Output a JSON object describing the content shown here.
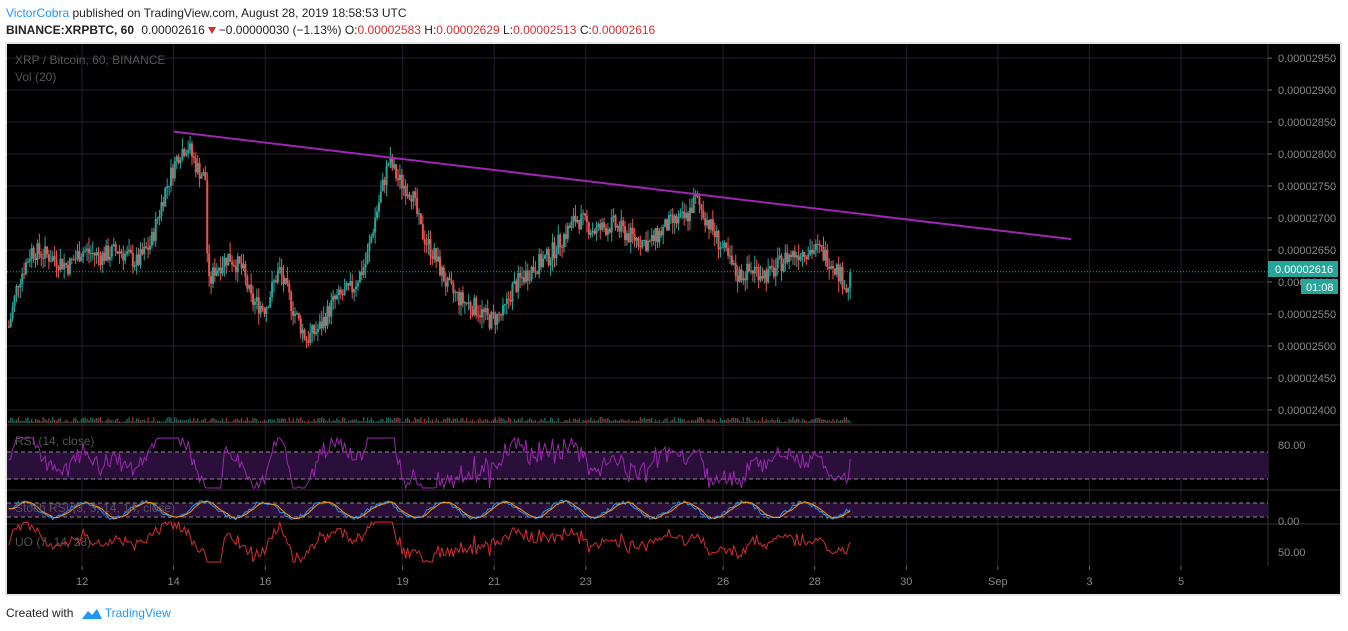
{
  "header": {
    "author": "VictorCobra",
    "published_text": "published on TradingView.com, August 28, 2019 18:58:53 UTC",
    "symbol": "BINANCE:XRPBTC, 60",
    "last": "0.00002616",
    "change": "−0.00000030 (−1.13%)",
    "o_label": "O:",
    "o_value": "0.00002583",
    "h_label": "H:",
    "h_value": "0.00002629",
    "l_label": "L:",
    "l_value": "0.00002513",
    "c_label": "C:",
    "c_value": "0.00002616"
  },
  "chart_data": {
    "type": "candlestick",
    "title": "XRP / Bitcoin, 60, BINANCE",
    "volume_label": "Vol (20)",
    "y_axis_ticks": [
      "0.00002950",
      "0.00002900",
      "0.00002850",
      "0.00002800",
      "0.00002750",
      "0.00002700",
      "0.00002650",
      "0.00002600",
      "0.00002550",
      "0.00002500",
      "0.00002450",
      "0.00002400"
    ],
    "ylim": [
      2.378e-05,
      2.972e-05
    ],
    "x_axis_ticks": [
      "12",
      "14",
      "16",
      "19",
      "21",
      "23",
      "26",
      "28",
      "30",
      "Sep",
      "3",
      "5"
    ],
    "x_tick_days": [
      12,
      14,
      16,
      19,
      21,
      23,
      26,
      28,
      30,
      32,
      34,
      36
    ],
    "xlim_days": [
      10.36,
      37.9
    ],
    "data_end_day": 28.8,
    "current_price": "0.00002616",
    "current_price_value": 2.616e-05,
    "countdown": "01:08",
    "price_path": [
      {
        "day": 10.4,
        "price": 2.53e-05
      },
      {
        "day": 10.6,
        "price": 2.6e-05
      },
      {
        "day": 10.9,
        "price": 2.65e-05
      },
      {
        "day": 11.3,
        "price": 2.64e-05
      },
      {
        "day": 11.7,
        "price": 2.625e-05
      },
      {
        "day": 12.0,
        "price": 2.65e-05
      },
      {
        "day": 12.4,
        "price": 2.64e-05
      },
      {
        "day": 12.8,
        "price": 2.65e-05
      },
      {
        "day": 13.2,
        "price": 2.63e-05
      },
      {
        "day": 13.5,
        "price": 2.66e-05
      },
      {
        "day": 13.8,
        "price": 2.74e-05
      },
      {
        "day": 14.1,
        "price": 2.8e-05
      },
      {
        "day": 14.3,
        "price": 2.815e-05
      },
      {
        "day": 14.5,
        "price": 2.78e-05
      },
      {
        "day": 14.7,
        "price": 2.76e-05
      },
      {
        "day": 14.75,
        "price": 2.59e-05
      },
      {
        "day": 14.9,
        "price": 2.62e-05
      },
      {
        "day": 15.2,
        "price": 2.64e-05
      },
      {
        "day": 15.5,
        "price": 2.62e-05
      },
      {
        "day": 15.7,
        "price": 2.57e-05
      },
      {
        "day": 16.0,
        "price": 2.56e-05
      },
      {
        "day": 16.3,
        "price": 2.62e-05
      },
      {
        "day": 16.6,
        "price": 2.56e-05
      },
      {
        "day": 16.9,
        "price": 2.51e-05
      },
      {
        "day": 17.2,
        "price": 2.53e-05
      },
      {
        "day": 17.5,
        "price": 2.57e-05
      },
      {
        "day": 17.9,
        "price": 2.59e-05
      },
      {
        "day": 18.2,
        "price": 2.63e-05
      },
      {
        "day": 18.4,
        "price": 2.7e-05
      },
      {
        "day": 18.7,
        "price": 2.79e-05
      },
      {
        "day": 18.9,
        "price": 2.76e-05
      },
      {
        "day": 19.2,
        "price": 2.74e-05
      },
      {
        "day": 19.4,
        "price": 2.68e-05
      },
      {
        "day": 19.7,
        "price": 2.64e-05
      },
      {
        "day": 20.0,
        "price": 2.59e-05
      },
      {
        "day": 20.3,
        "price": 2.57e-05
      },
      {
        "day": 20.6,
        "price": 2.56e-05
      },
      {
        "day": 20.9,
        "price": 2.54e-05
      },
      {
        "day": 21.2,
        "price": 2.55e-05
      },
      {
        "day": 21.4,
        "price": 2.59e-05
      },
      {
        "day": 21.8,
        "price": 2.62e-05
      },
      {
        "day": 22.2,
        "price": 2.64e-05
      },
      {
        "day": 22.5,
        "price": 2.67e-05
      },
      {
        "day": 22.8,
        "price": 2.7e-05
      },
      {
        "day": 23.2,
        "price": 2.68e-05
      },
      {
        "day": 23.6,
        "price": 2.69e-05
      },
      {
        "day": 24.0,
        "price": 2.67e-05
      },
      {
        "day": 24.4,
        "price": 2.66e-05
      },
      {
        "day": 24.8,
        "price": 2.69e-05
      },
      {
        "day": 25.2,
        "price": 2.7e-05
      },
      {
        "day": 25.4,
        "price": 2.73e-05
      },
      {
        "day": 25.7,
        "price": 2.69e-05
      },
      {
        "day": 26.0,
        "price": 2.65e-05
      },
      {
        "day": 26.3,
        "price": 2.61e-05
      },
      {
        "day": 26.7,
        "price": 2.62e-05
      },
      {
        "day": 27.0,
        "price": 2.61e-05
      },
      {
        "day": 27.4,
        "price": 2.64e-05
      },
      {
        "day": 27.8,
        "price": 2.65e-05
      },
      {
        "day": 28.1,
        "price": 2.65e-05
      },
      {
        "day": 28.4,
        "price": 2.63e-05
      },
      {
        "day": 28.65,
        "price": 2.6e-05
      },
      {
        "day": 28.72,
        "price": 2.58e-05
      },
      {
        "day": 28.8,
        "price": 2.616e-05
      }
    ],
    "trendline": {
      "start": {
        "day": 14.0,
        "price": 2.835e-05
      },
      "end": {
        "day": 33.6,
        "price": 2.667e-05
      }
    },
    "indicators": [
      {
        "name": "RSI (14, close)",
        "tick": "80.00"
      },
      {
        "name": "Stoch RSI (3, 3, 14, 14, close)",
        "tick": "0.00"
      },
      {
        "name": "UO (7, 14, 28)",
        "tick": "50.00"
      }
    ],
    "colors": {
      "background": "#000000",
      "up": "#26a69a",
      "down": "#ef5350",
      "trendline": "#9c27b0",
      "grid": "#2a1a33",
      "rsi": "#9c27b0",
      "uo": "#d32f2f",
      "stoch_k": "#2196f3",
      "stoch_d": "#ff9800"
    }
  },
  "footer": {
    "created_with": "Created with",
    "brand": "TradingView"
  }
}
